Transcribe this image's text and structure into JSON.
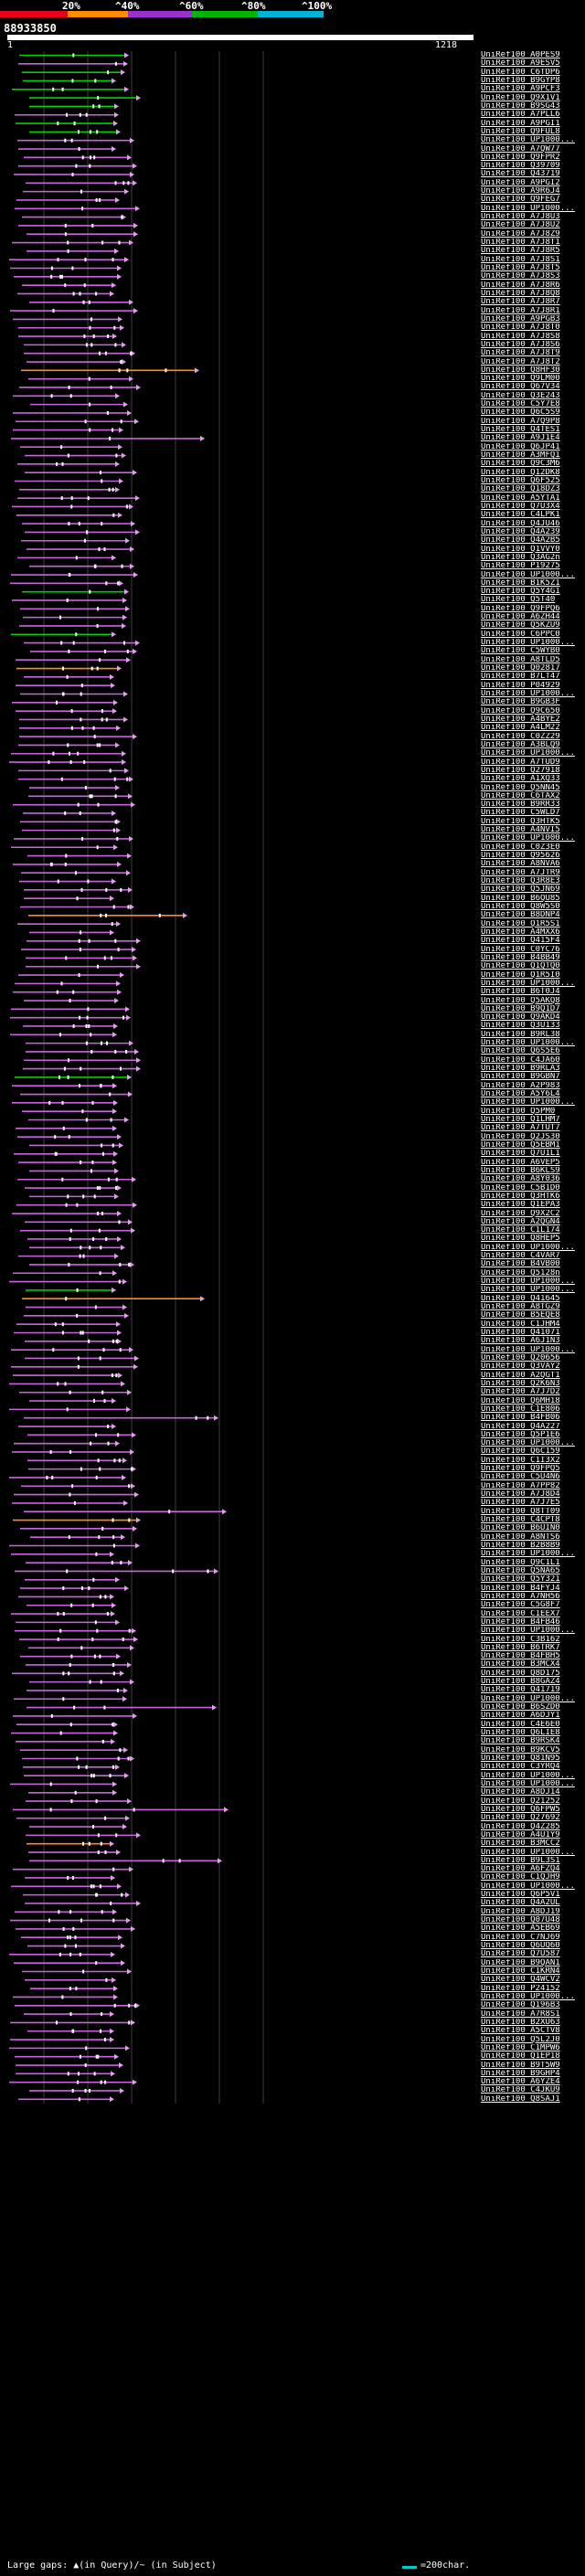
{
  "legend": {
    "labels": [
      "20%",
      "^40%",
      "^60%",
      "^80%",
      "^100%"
    ],
    "colors": [
      "#e8001c",
      "#ff8c00",
      "#9b30d0",
      "#00b400",
      "#00b4d8"
    ]
  },
  "query": {
    "id": "88933850",
    "start": "1",
    "end": "1218"
  },
  "hits": [
    "UniRef100_A0PES9",
    "UniRef100_A9ESV5",
    "UniRef100_C6TDP6",
    "UniRef100_B9GYP8",
    "UniRef100_A9PCF3",
    "UniRef100_Q9X1V1",
    "UniRef100_B9SG43",
    "UniRef100_A7PLL6",
    "UniRef100_A9PGI1",
    "UniRef100_Q9FUL8",
    "UniRef100_UP1000...",
    "UniRef100_A7QW77",
    "UniRef100_Q9FPR2",
    "UniRef100_Q39709",
    "UniRef100_Q43719",
    "UniRef100_A9PGI2",
    "UniRef100_A9R6J4",
    "UniRef100_Q9FEG7",
    "UniRef100_UP1000...",
    "UniRef100_A7J8U3",
    "UniRef100_A7J8U2",
    "UniRef100_A7J8Z9",
    "UniRef100_A7J8T1",
    "UniRef100_A7J8R5",
    "UniRef100_A7J8S1",
    "UniRef100_A7J8T5",
    "UniRef100_A7J8S3",
    "UniRef100_A7J8R6",
    "UniRef100_A7J8Q8",
    "UniRef100_A7J8R7",
    "UniRef100_A7J8R1",
    "UniRef100_A9PGB3",
    "UniRef100_A7J8T0",
    "UniRef100_A7J8S8",
    "UniRef100_A7J8S6",
    "UniRef100_A7J8T9",
    "UniRef100_A7J8T2",
    "UniRef100_Q8HF30",
    "UniRef100_Q9LM00",
    "UniRef100_Q67V34",
    "UniRef100_Q3E243",
    "UniRef100_C5Y7E8",
    "UniRef100_Q6C5S9",
    "UniRef100_A7Q9P8",
    "UniRef100_Q4TES1",
    "UniRef100_A9J1E4",
    "UniRef100_Q6JP41",
    "UniRef100_A3MFQ1",
    "UniRef100_Q9C3M6",
    "UniRef100_Q12DK8",
    "UniRef100_Q6F525",
    "UniRef100_Q18DZ3",
    "UniRef100_A5YTA1",
    "UniRef100_Q7U3X4",
    "UniRef100_C4LPK1",
    "UniRef100_Q4JU46",
    "UniRef100_Q4A239",
    "UniRef100_Q4A2B5",
    "UniRef100_Q1VVY0",
    "UniRef100_Q3AG2n",
    "UniRef100_P19275",
    "UniRef100_UP1000...",
    "UniRef100_B1K5Z1",
    "UniRef100_Q5Y4G1",
    "UniRef100_Q5T40",
    "UniRef100_Q9FPQ6",
    "UniRef100_A6ZH44",
    "UniRef100_Q5KZU9",
    "UniRef100_C6PPC0",
    "UniRef100_UP1000...",
    "UniRef100_C5WYB0",
    "UniRef100_A8TLD5",
    "UniRef100_Q02817",
    "UniRef100_B7LT47",
    "UniRef100_P04929",
    "UniRef100_UP1000...",
    "UniRef100_B9GB3F",
    "UniRef100_Q9C650",
    "UniRef100_A4BYE2",
    "UniRef100_A4LM22",
    "UniRef100_C0ZZ29",
    "UniRef100_A3BLQ9",
    "UniRef100_UP1000...",
    "UniRef100_A7TUD9",
    "UniRef100_Q27918",
    "UniRef100_A1XQ33",
    "UniRef100_Q5NN45",
    "UniRef100_C6TAX2",
    "UniRef100_B9RR33",
    "UniRef100_C5WLD7",
    "UniRef100_Q3HTK5",
    "UniRef100_A4NVI5",
    "UniRef100_UP1000...",
    "UniRef100_C0Z3E0",
    "UniRef100_Q95626",
    "UniRef100_A8NVA6",
    "UniRef100_A7JTR9",
    "UniRef100_Q3R8E3",
    "UniRef100_Q5JN69",
    "UniRef100_B6QU85",
    "UniRef100_Q8W5S0",
    "UniRef100_B8DNP4",
    "UniRef100_Q1R5S1",
    "UniRef100_A4MXX6",
    "UniRef100_Q415F4",
    "UniRef100_C0YC76",
    "UniRef100_B4BB49",
    "UniRef100_Q1QTQ0",
    "UniRef100_Q1R5I0",
    "UniRef100_UP1000...",
    "UniRef100_B6T0J4",
    "UniRef100_Q5AKQ8",
    "UniRef100_B9Q1D7",
    "UniRef100_Q9AKD4",
    "UniRef100_Q3U133",
    "UniRef100_B9RL38",
    "UniRef100_UP1000...",
    "UniRef100_Q6S5E6",
    "UniRef100_C4JA60",
    "UniRef100_B9RLA3",
    "UniRef100_B9GBN7",
    "UniRef100_A2P983",
    "UniRef100_A5Y6L4",
    "UniRef100_UP1000...",
    "UniRef100_Q5PM0",
    "UniRef100_Q1LHM7",
    "UniRef100_A7TUT7",
    "UniRef100_Q2JS30",
    "UniRef100_Q5EBM1",
    "UniRef100_Q7U1L1",
    "UniRef100_A6VEP5",
    "UniRef100_B6KLS9",
    "UniRef100_A8Y036",
    "UniRef100_C5B1D0",
    "UniRef100_Q3HTK6",
    "UniRef100_Q1EPA3",
    "UniRef100_Q9X2C2",
    "UniRef100_A2QGN4",
    "UniRef100_C1L174",
    "UniRef100_Q8HEP5",
    "UniRef100_UP1000...",
    "UniRef100_C4VAR7",
    "UniRef100_B4VB00",
    "UniRef100_Q5128n",
    "UniRef100_UP1000...",
    "UniRef100_UP1000...",
    "UniRef100_Q41645",
    "UniRef100_A8TGZ9",
    "UniRef100_B5EQE8",
    "UniRef100_C1JHM4",
    "UniRef100_Q41071",
    "UniRef100_A6J1N3",
    "UniRef100_UP1000...",
    "UniRef100_Q20656",
    "UniRef100_Q3VAY2",
    "UniRef100_A2QGT1",
    "UniRef100_Q2K6N3",
    "UniRef100_A7J7D2",
    "UniRef100_Q6MH18",
    "UniRef100_C1E806",
    "UniRef100_B4FB06",
    "UniRef100_Q4A227",
    "UniRef100_Q5P1E6",
    "UniRef100_UP1000...",
    "UniRef100_Q6C159",
    "UniRef100_C1I3X2",
    "UniRef100_Q9FPQ5",
    "UniRef100_C5U4N6",
    "UniRef100_A7PP82",
    "UniRef100_A7J8D4",
    "UniRef100_A7J7E5",
    "UniRef100_Q8TT09",
    "UniRef100_C4CPT8",
    "UniRef100_B6UIN0",
    "UniRef100_A8NTS6",
    "UniRef100_B2B8B9",
    "UniRef100_UP1000...",
    "UniRef100_Q9C1L1",
    "UniRef100_Q5NA65",
    "UniRef100_Q5Y321",
    "UniRef100_B4FYJ4",
    "UniRef100_A7NH56",
    "UniRef100_C5G8F7",
    "UniRef100_C1EEX7",
    "UniRef100_B4FB46",
    "UniRef100_UP1000...",
    "UniRef100_C3B162",
    "UniRef100_B6TRK7",
    "UniRef100_B4FBH5",
    "UniRef100_B3MCX4",
    "UniRef100_Q8D175",
    "UniRef100_B8GAZ4",
    "UniRef100_Q41719",
    "UniRef100_UP1000...",
    "UniRef100_B6SZD0",
    "UniRef100_A6DJY1",
    "UniRef100_C4E6E0",
    "UniRef100_Q6LIE8",
    "UniRef100_B9RSK4",
    "UniRef100_B9KCV5",
    "UniRef100_Q81N95",
    "UniRef100_C3YRQ4",
    "UniRef100_UP1000...",
    "UniRef100_UP1000...",
    "UniRef100_A8DJ14",
    "UniRef100_Q21252",
    "UniRef100_Q6FPW5",
    "UniRef100_Q27692",
    "UniRef100_Q4Z285",
    "UniRef100_A4U1Y9",
    "UniRef100_B3MCC2",
    "UniRef100_UP1000...",
    "UniRef100_B9L3S1",
    "UniRef100_A6FZQ4",
    "UniRef100_C1QJH9",
    "UniRef100_UP1000...",
    "UniRef100_Q6P5V1",
    "UniRef100_Q4A2UL",
    "UniRef100_A8DJ19",
    "UniRef100_Q07U48",
    "UniRef100_A5EB69",
    "UniRef100_C7NJ69",
    "UniRef100_Q6UQ60",
    "UniRef100_Q7U587",
    "UniRef100_B9QAN1",
    "UniRef100_C1KRN4",
    "UniRef100_Q4WCV2",
    "UniRef100_P24152",
    "UniRef100_UP1000...",
    "UniRef100_Q196B3",
    "UniRef100_A7R8S1",
    "UniRef100_B2XU63",
    "UniRef100_A5CTV8",
    "UniRef100_Q5L2J0",
    "UniRef100_C1MPW6",
    "UniRef100_Q1EP18",
    "UniRef100_B9T5W9",
    "UniRef100_B9GHP4",
    "UniRef100_A6YZE4",
    "UniRef100_C4JKU9",
    "UniRef100_Q8SAJ1"
  ],
  "footer": {
    "text": "Large gaps: ▲(in Query)/~ (in Subject)",
    "scale": "=200char."
  },
  "colors": {
    "background": "#000000",
    "line_purple": "#c864dc",
    "line_pink": "#e0a0e8",
    "line_green": "#00d000",
    "line_orange": "#ff8c1a",
    "line_cyan": "#00c8c8",
    "text": "#ffffff",
    "grid": "#404040"
  }
}
